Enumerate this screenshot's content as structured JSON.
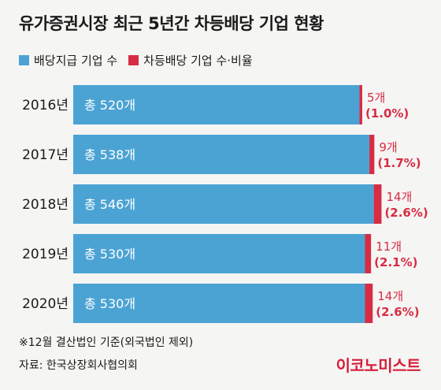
{
  "title": "유가증권시장 최근 5년간 차등배당 기업 현황",
  "legend": {
    "items": [
      {
        "label": "배당지급 기업 수",
        "color": "#4ba3d4"
      },
      {
        "label": "차등배당 기업 수·비율",
        "color": "#d72c44"
      }
    ]
  },
  "chart_data": {
    "type": "bar",
    "orientation": "horizontal",
    "stacked": true,
    "categories": [
      "2016년",
      "2017년",
      "2018년",
      "2019년",
      "2020년"
    ],
    "series": [
      {
        "name": "배당지급 기업 수",
        "values": [
          520,
          538,
          546,
          530,
          530
        ],
        "labels": [
          "총 520개",
          "총 538개",
          "총 546개",
          "총 530개",
          "총 530개"
        ]
      },
      {
        "name": "차등배당 기업 수·비율",
        "values": [
          5,
          9,
          14,
          11,
          14
        ],
        "labels": [
          "5개",
          "9개",
          "14개",
          "11개",
          "14개"
        ],
        "percent_labels": [
          "(1.0%)",
          "(1.7%)",
          "(2.6%)",
          "(2.1%)",
          "(2.6%)"
        ]
      }
    ],
    "xlim": [
      0,
      560
    ],
    "grid": false
  },
  "footer": {
    "note": "※12월 결산법인 기준(외국법인 제외)",
    "source": "자료: 한국상장회사협의회",
    "logo": "이코노미스트"
  }
}
